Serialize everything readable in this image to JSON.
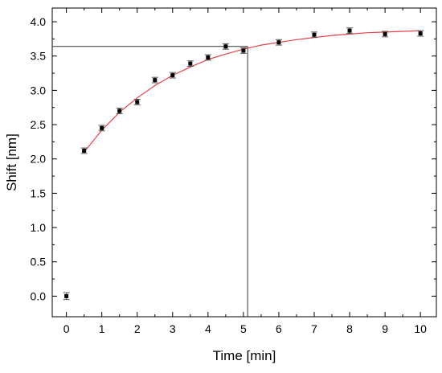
{
  "chart_data": {
    "type": "scatter",
    "xlabel": "Time [min]",
    "ylabel": "Shift [nm]",
    "xlim": [
      -0.4,
      10.45
    ],
    "ylim": [
      -0.3,
      4.2
    ],
    "x_ticks": [
      "0",
      "1",
      "2",
      "3",
      "4",
      "5",
      "6",
      "7",
      "8",
      "9",
      "10"
    ],
    "y_ticks": [
      "0.0",
      "0.5",
      "1.0",
      "1.5",
      "2.0",
      "2.5",
      "3.0",
      "3.5",
      "4.0"
    ],
    "grid": false,
    "colors": {
      "points": "#000000",
      "fit": "#e8404a",
      "error_bars": "#555555",
      "reference_lines": "#333333"
    },
    "points": [
      {
        "x": 0,
        "y": 0.0,
        "err": 0.05
      },
      {
        "x": 0.5,
        "y": 2.12,
        "err": 0.04
      },
      {
        "x": 1,
        "y": 2.45,
        "err": 0.04
      },
      {
        "x": 1.5,
        "y": 2.7,
        "err": 0.04
      },
      {
        "x": 2,
        "y": 2.83,
        "err": 0.04
      },
      {
        "x": 2.5,
        "y": 3.15,
        "err": 0.04
      },
      {
        "x": 3,
        "y": 3.22,
        "err": 0.04
      },
      {
        "x": 3.5,
        "y": 3.39,
        "err": 0.04
      },
      {
        "x": 4,
        "y": 3.48,
        "err": 0.04
      },
      {
        "x": 4.5,
        "y": 3.64,
        "err": 0.04
      },
      {
        "x": 5,
        "y": 3.58,
        "err": 0.04
      },
      {
        "x": 6,
        "y": 3.7,
        "err": 0.04
      },
      {
        "x": 7,
        "y": 3.81,
        "err": 0.04
      },
      {
        "x": 8,
        "y": 3.87,
        "err": 0.04
      },
      {
        "x": 9,
        "y": 3.82,
        "err": 0.04
      },
      {
        "x": 10,
        "y": 3.83,
        "err": 0.04
      }
    ],
    "fit_curve": {
      "type": "line",
      "x": [
        0.5,
        1,
        1.5,
        2,
        2.5,
        3,
        3.5,
        4,
        4.5,
        5,
        5.5,
        6,
        6.5,
        7,
        7.5,
        8,
        8.5,
        9,
        9.5,
        10
      ],
      "y": [
        2.1,
        2.42,
        2.68,
        2.89,
        3.07,
        3.22,
        3.34,
        3.45,
        3.53,
        3.6,
        3.66,
        3.7,
        3.74,
        3.77,
        3.8,
        3.82,
        3.84,
        3.85,
        3.86,
        3.87
      ]
    },
    "reference_lines": {
      "x": 5.12,
      "y": 3.64
    }
  }
}
